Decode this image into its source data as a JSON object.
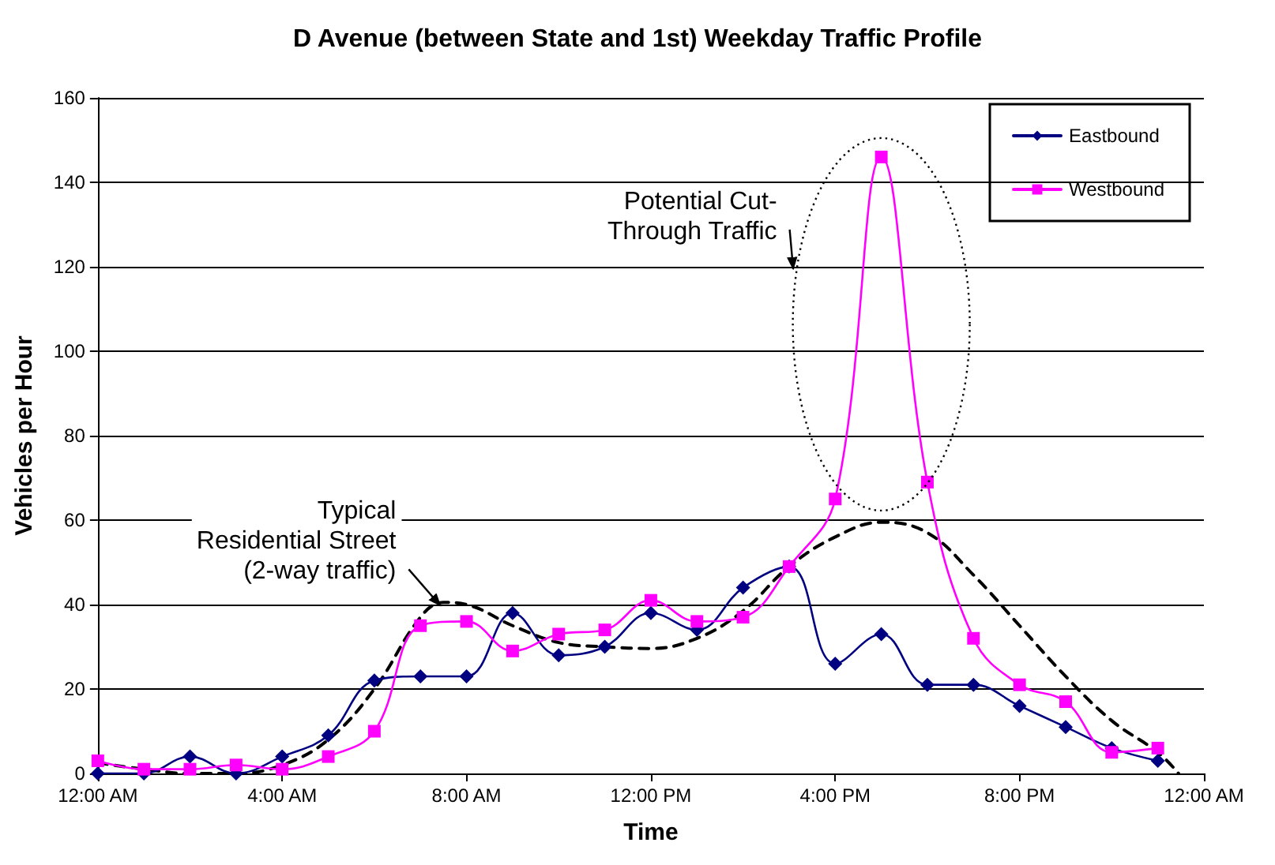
{
  "chart_data": {
    "type": "line",
    "title": "D Avenue (between State and 1st) Weekday Traffic Profile",
    "xlabel": "Time",
    "ylabel": "Vehicles per Hour",
    "x": [
      0,
      1,
      2,
      3,
      4,
      5,
      6,
      7,
      8,
      9,
      10,
      11,
      12,
      13,
      14,
      15,
      16,
      17,
      18,
      19,
      20,
      21,
      22,
      23
    ],
    "series": [
      {
        "name": "Eastbound",
        "color": "#000080",
        "marker": "diamond",
        "values": [
          0,
          0,
          4,
          0,
          4,
          9,
          22,
          23,
          23,
          38,
          28,
          30,
          38,
          34,
          44,
          49,
          26,
          33,
          21,
          21,
          16,
          11,
          6,
          3
        ]
      },
      {
        "name": "Westbound",
        "color": "#ff00ff",
        "marker": "square",
        "values": [
          3,
          1,
          1,
          2,
          1,
          4,
          10,
          35,
          36,
          29,
          33,
          34,
          41,
          36,
          37,
          49,
          65,
          146,
          69,
          32,
          21,
          17,
          5,
          6
        ]
      },
      {
        "color": "#000000",
        "marker": "none",
        "line_style": "dashed",
        "x": [
          0,
          1,
          2,
          3,
          4,
          5,
          6,
          7,
          7.5,
          8,
          9,
          10,
          11,
          12,
          13,
          14,
          15,
          16,
          17,
          18,
          19,
          20,
          21,
          22,
          23,
          23.45
        ],
        "values": [
          2.5,
          1,
          0,
          0,
          2,
          8,
          20,
          37,
          40.5,
          40,
          35,
          31,
          30,
          29.6,
          32,
          38.5,
          49,
          56,
          59.5,
          57,
          47,
          35,
          23,
          12.5,
          5,
          0
        ]
      }
    ],
    "xlim": [
      0,
      24
    ],
    "xticks": [
      {
        "value": 0,
        "label": "12:00 AM"
      },
      {
        "value": 4,
        "label": "4:00 AM"
      },
      {
        "value": 8,
        "label": "8:00 AM"
      },
      {
        "value": 12,
        "label": "12:00 PM"
      },
      {
        "value": 16,
        "label": "4:00 PM"
      },
      {
        "value": 20,
        "label": "8:00 PM"
      },
      {
        "value": 24,
        "label": "12:00 AM"
      }
    ],
    "ylim": [
      0,
      160
    ],
    "yticks": [
      0,
      20,
      40,
      60,
      80,
      100,
      120,
      140,
      160
    ],
    "grid": "y",
    "legend": "top right",
    "annotations": [
      "Potential Cut-\nThrough Traffic",
      {
        "text": "Typical\nResidential Street\n(2-way traffic)",
        "x": 7.5,
        "y": 39
      }
    ]
  }
}
